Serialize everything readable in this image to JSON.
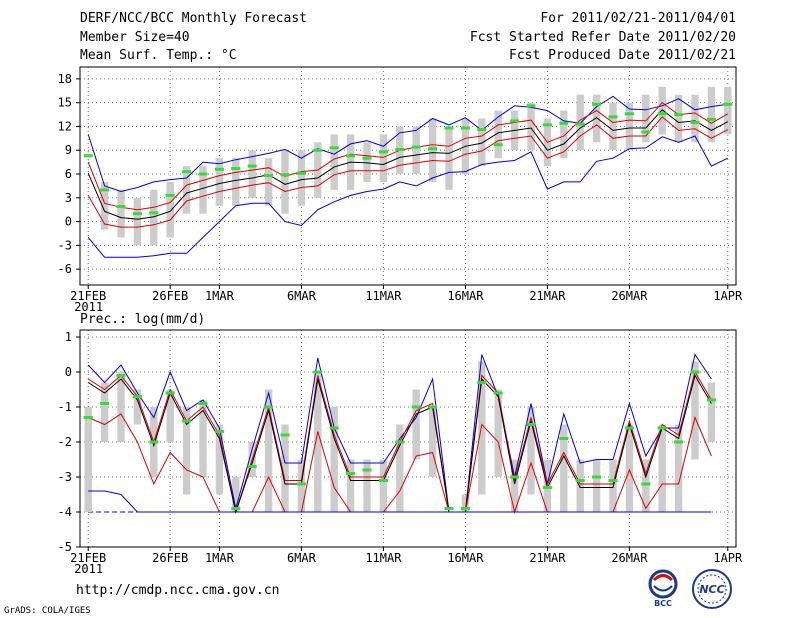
{
  "header": {
    "title": "DERF/NCC/BCC Monthly Forecast",
    "member_size": "Member Size=40",
    "variable": "Mean Surf. Temp.: °C",
    "period": "For 2011/02/21-2011/04/01",
    "start_date": "Fcst Started Refer Date 2011/02/20",
    "produced_date": "Fcst Produced Date 2011/02/21"
  },
  "footer": {
    "url": "http://cmdp.ncc.cma.gov.cn",
    "credit": "GrADS: COLA/IGES",
    "logo_left_text": "BCC",
    "logo_right_text": "NCC"
  },
  "colors": {
    "ensemble_mean": "#000000",
    "spread_lines": "#e00000",
    "min_max_lines": "#0000e0",
    "deterministic_marks": "#33dd33",
    "box_bars": "#cccccc"
  },
  "chart_data": [
    {
      "type": "line",
      "title": "Mean Surf. Temp.: °C",
      "x_tick_labels": [
        "21FEB",
        "26FEB",
        "1MAR",
        "6MAR",
        "11MAR",
        "16MAR",
        "21MAR",
        "26MAR",
        "1APR"
      ],
      "x_tick_days": [
        0,
        5,
        8,
        13,
        18,
        23,
        28,
        33,
        39
      ],
      "x_year_label": "2011",
      "xlim": [
        -0.5,
        39.5
      ],
      "ylim": [
        -8,
        19.5
      ],
      "yticks": [
        -6,
        -3,
        0,
        3,
        6,
        9,
        12,
        15,
        18
      ],
      "series": [
        {
          "name": "max",
          "values": [
            11,
            4.5,
            3.8,
            4.3,
            5,
            5.3,
            5.5,
            7.5,
            7.3,
            7.8,
            8.2,
            8.6,
            9.1,
            8,
            9.2,
            8.5,
            9.8,
            10.2,
            9.5,
            11.2,
            11.5,
            13,
            12.2,
            13.1,
            11.5,
            13.2,
            14.6,
            14.4,
            14,
            12.7,
            12.4,
            14.5,
            15.8,
            14.2,
            14.1,
            14.6,
            15.5,
            14.1,
            14.5,
            14.8
          ]
        },
        {
          "name": "upper",
          "values": [
            7.5,
            2.3,
            1.8,
            1.5,
            1.8,
            2.4,
            4.6,
            5.2,
            5.8,
            6.2,
            6.5,
            6.8,
            5.7,
            6.3,
            6.5,
            7.9,
            8.5,
            8.3,
            8.1,
            9,
            9.4,
            9.7,
            9.5,
            10.5,
            10.8,
            12.2,
            12.5,
            12.8,
            10,
            10.8,
            12.8,
            14,
            12.5,
            12.8,
            12.7,
            15,
            13.5,
            13.7,
            12.4,
            13.6
          ]
        },
        {
          "name": "mean",
          "values": [
            6.1,
            1.3,
            0.5,
            0.3,
            0.6,
            1.3,
            3.6,
            4.2,
            4.8,
            5.2,
            5.5,
            5.9,
            4.7,
            5.3,
            5.5,
            6.9,
            7.5,
            7.4,
            7.2,
            8.1,
            8.4,
            8.7,
            8.6,
            9.5,
            9.9,
            11.2,
            11.5,
            11.8,
            9,
            9.8,
            11.8,
            13.1,
            11.5,
            11.8,
            11.8,
            14.1,
            12.5,
            12.7,
            11.5,
            12.6
          ]
        },
        {
          "name": "lower",
          "values": [
            3.3,
            -0.3,
            -0.7,
            -0.7,
            -0.4,
            0.2,
            2.6,
            3.2,
            3.8,
            4.2,
            4.6,
            4.9,
            3.8,
            4.3,
            4.5,
            5.9,
            6.4,
            6.4,
            6.4,
            7.1,
            7.4,
            7.7,
            7.6,
            8.5,
            8.9,
            10.2,
            10.5,
            10.8,
            8,
            8.8,
            10.8,
            12.2,
            10.5,
            10.8,
            10.8,
            13.2,
            11.5,
            11.7,
            10.5,
            11.6
          ]
        },
        {
          "name": "min",
          "values": [
            -2,
            -4.5,
            -4.5,
            -4.5,
            -4.3,
            -4,
            -4,
            -2,
            0,
            2,
            2.3,
            2.3,
            0,
            -0.5,
            1.5,
            2.5,
            3.3,
            3.8,
            4.1,
            5,
            4.5,
            5.5,
            6.2,
            6.3,
            7.2,
            7.5,
            7.7,
            8.8,
            4.1,
            5,
            5,
            7.6,
            8,
            9.2,
            9.3,
            10.7,
            10,
            10.8,
            7,
            8
          ]
        }
      ],
      "boxes": [
        {
          "day": 1,
          "low": -1,
          "high": 5
        },
        {
          "day": 2,
          "low": -2,
          "high": 4
        },
        {
          "day": 3,
          "low": -3,
          "high": 3
        },
        {
          "day": 4,
          "low": -3,
          "high": 4
        },
        {
          "day": 5,
          "low": -2,
          "high": 5
        },
        {
          "day": 6,
          "low": 1,
          "high": 7
        },
        {
          "day": 7,
          "low": 1,
          "high": 7
        },
        {
          "day": 8,
          "low": 2,
          "high": 8
        },
        {
          "day": 9,
          "low": 2,
          "high": 8
        },
        {
          "day": 10,
          "low": 3,
          "high": 9
        },
        {
          "day": 11,
          "low": 2,
          "high": 8
        },
        {
          "day": 12,
          "low": 1,
          "high": 9
        },
        {
          "day": 13,
          "low": 2,
          "high": 9
        },
        {
          "day": 14,
          "low": 3,
          "high": 10
        },
        {
          "day": 15,
          "low": 4,
          "high": 11
        },
        {
          "day": 16,
          "low": 4,
          "high": 11
        },
        {
          "day": 17,
          "low": 5,
          "high": 10
        },
        {
          "day": 18,
          "low": 5,
          "high": 11
        },
        {
          "day": 19,
          "low": 6,
          "high": 12
        },
        {
          "day": 20,
          "low": 6,
          "high": 12
        },
        {
          "day": 21,
          "low": 5,
          "high": 13
        },
        {
          "day": 22,
          "low": 4,
          "high": 12
        },
        {
          "day": 23,
          "low": 6,
          "high": 13
        },
        {
          "day": 24,
          "low": 7,
          "high": 13
        },
        {
          "day": 25,
          "low": 8,
          "high": 14
        },
        {
          "day": 26,
          "low": 9,
          "high": 14
        },
        {
          "day": 27,
          "low": 9,
          "high": 15
        },
        {
          "day": 28,
          "low": 7,
          "high": 13
        },
        {
          "day": 29,
          "low": 8,
          "high": 14
        },
        {
          "day": 30,
          "low": 9,
          "high": 16
        },
        {
          "day": 31,
          "low": 10,
          "high": 16
        },
        {
          "day": 32,
          "low": 9,
          "high": 15
        },
        {
          "day": 33,
          "low": 9,
          "high": 15
        },
        {
          "day": 34,
          "low": 10,
          "high": 16
        },
        {
          "day": 35,
          "low": 11,
          "high": 17
        },
        {
          "day": 36,
          "low": 10,
          "high": 16
        },
        {
          "day": 37,
          "low": 10,
          "high": 16
        },
        {
          "day": 38,
          "low": 10,
          "high": 17
        },
        {
          "day": 39,
          "low": 11,
          "high": 17
        }
      ],
      "marks": [
        8.3,
        4,
        1.9,
        1,
        1.1,
        3.3,
        6.3,
        6,
        6.6,
        6.7,
        7,
        5.8,
        5.9,
        6.1,
        9,
        9.3,
        8.3,
        8,
        8.8,
        9.1,
        9.4,
        9.2,
        11.8,
        11.8,
        11.6,
        9.7,
        12.7,
        14.6,
        12.2,
        12.4,
        12.3,
        14.8,
        13.2,
        13.6,
        11.3,
        13.6,
        13.5,
        12.5,
        12.9,
        14.8
      ]
    },
    {
      "type": "line",
      "title": "Prec.: log(mm/d)",
      "x_tick_labels": [
        "21FEB",
        "26FEB",
        "1MAR",
        "6MAR",
        "11MAR",
        "16MAR",
        "21MAR",
        "26MAR",
        "1APR"
      ],
      "x_tick_days": [
        0,
        5,
        8,
        13,
        18,
        23,
        28,
        33,
        39
      ],
      "x_year_label": "2011",
      "xlim": [
        -0.5,
        39.5
      ],
      "ylim": [
        -5,
        1.2
      ],
      "yticks": [
        -5,
        -4,
        -3,
        -2,
        -1,
        0,
        1
      ],
      "reference_line": -4,
      "series": [
        {
          "name": "max",
          "values": [
            0.2,
            -0.3,
            0.2,
            -0.6,
            -1.3,
            0,
            -1.1,
            -0.8,
            -1.6,
            -3.9,
            -2.2,
            -0.6,
            -2.6,
            -2.6,
            0.4,
            -1.6,
            -2.6,
            -2.6,
            -2.6,
            -1.9,
            -1.3,
            -0.2,
            -4,
            -4,
            0.5,
            -0.7,
            -3,
            -0.9,
            -3.2,
            -1.2,
            -2.6,
            -2.5,
            -2.5,
            -0.9,
            -2.4,
            -1.6,
            -1.6,
            0.5,
            -0.2
          ]
        },
        {
          "name": "upper",
          "values": [
            -0.2,
            -0.5,
            -0.1,
            -0.7,
            -2,
            -0.5,
            -1.4,
            -1,
            -1.8,
            -4,
            -2.5,
            -1,
            -3.1,
            -3.1,
            -0.1,
            -1.8,
            -3,
            -3,
            -3,
            -2,
            -1.1,
            -0.9,
            -4,
            -4,
            -0.1,
            -0.6,
            -3.1,
            -1.3,
            -3.2,
            -2.3,
            -3.2,
            -3.2,
            -3.2,
            -1.4,
            -2.9,
            -1.5,
            -1.8,
            0,
            -0.8
          ]
        },
        {
          "name": "mean",
          "values": [
            -0.3,
            -0.6,
            -0.2,
            -0.8,
            -2.1,
            -0.6,
            -1.5,
            -1.1,
            -1.9,
            -4,
            -2.6,
            -1.1,
            -3.2,
            -3.2,
            -0.2,
            -1.9,
            -3.1,
            -3.1,
            -3.1,
            -2.1,
            -1.2,
            -1,
            -4,
            -4,
            -0.2,
            -0.7,
            -3.2,
            -1.4,
            -3.3,
            -2.4,
            -3.3,
            -3.3,
            -3.3,
            -1.5,
            -3,
            -1.6,
            -1.9,
            -0.1,
            -0.9
          ]
        },
        {
          "name": "lower",
          "values": [
            -1.3,
            -1.5,
            -1.2,
            -2,
            -3.2,
            -2.3,
            -2.8,
            -3,
            -4,
            -4,
            -4,
            -3,
            -4,
            -4,
            -1.7,
            -3.3,
            -4,
            -4,
            -4,
            -3.4,
            -2.4,
            -2.3,
            -4,
            -4,
            -1.5,
            -2,
            -4,
            -2.6,
            -4,
            -4,
            -4,
            -4,
            -4,
            -2.8,
            -3.9,
            -3.2,
            -3.2,
            -1.3,
            -2.4
          ]
        },
        {
          "name": "min",
          "values": [
            -3.4,
            -3.4,
            -3.5,
            -4,
            -4,
            -4,
            -4,
            -4,
            -4,
            -4,
            -4,
            -4,
            -4,
            -4,
            -4,
            -4,
            -4,
            -4,
            -4,
            -4,
            -4,
            -4,
            -4,
            -4,
            -4,
            -4,
            -4,
            -4,
            -4,
            -4,
            -4,
            -4,
            -4,
            -4,
            -4,
            -4,
            -4,
            -4,
            -4
          ]
        }
      ],
      "boxes": [
        {
          "day": 0,
          "low": -4,
          "high": -1
        },
        {
          "day": 1,
          "low": -2,
          "high": -0.3
        },
        {
          "day": 2,
          "low": -2,
          "high": 0
        },
        {
          "day": 3,
          "low": -1.5,
          "high": -0.5
        },
        {
          "day": 4,
          "low": -3,
          "high": -1
        },
        {
          "day": 5,
          "low": -2,
          "high": -0.5
        },
        {
          "day": 6,
          "low": -3.5,
          "high": -1
        },
        {
          "day": 7,
          "low": -3,
          "high": -0.8
        },
        {
          "day": 8,
          "low": -3.5,
          "high": -1.5
        },
        {
          "day": 9,
          "low": -4,
          "high": -3
        },
        {
          "day": 10,
          "low": -3,
          "high": -2
        },
        {
          "day": 11,
          "low": -4,
          "high": -0.5
        },
        {
          "day": 12,
          "low": -4,
          "high": -1.5
        },
        {
          "day": 13,
          "low": -4,
          "high": -2.5
        },
        {
          "day": 14,
          "low": -4,
          "high": 0
        },
        {
          "day": 15,
          "low": -4,
          "high": -1
        },
        {
          "day": 16,
          "low": -4,
          "high": -2.5
        },
        {
          "day": 17,
          "low": -4,
          "high": -2.5
        },
        {
          "day": 18,
          "low": -4,
          "high": -2.5
        },
        {
          "day": 19,
          "low": -4,
          "high": -1.5
        },
        {
          "day": 20,
          "low": -2.5,
          "high": -0.5
        },
        {
          "day": 21,
          "low": -3,
          "high": -1
        },
        {
          "day": 23,
          "low": -4,
          "high": -3.5
        },
        {
          "day": 24,
          "low": -3.5,
          "high": 0.3
        },
        {
          "day": 25,
          "low": -3,
          "high": -0.5
        },
        {
          "day": 26,
          "low": -4,
          "high": -2.5
        },
        {
          "day": 27,
          "low": -3.5,
          "high": -1
        },
        {
          "day": 28,
          "low": -4,
          "high": -2.5
        },
        {
          "day": 29,
          "low": -4,
          "high": -1.5
        },
        {
          "day": 30,
          "low": -4,
          "high": -2.5
        },
        {
          "day": 31,
          "low": -4,
          "high": -2.5
        },
        {
          "day": 32,
          "low": -4,
          "high": -2.5
        },
        {
          "day": 33,
          "low": -4,
          "high": -1.5
        },
        {
          "day": 34,
          "low": -4,
          "high": -2.5
        },
        {
          "day": 35,
          "low": -4,
          "high": -1.5
        },
        {
          "day": 36,
          "low": -4,
          "high": -1.5
        },
        {
          "day": 37,
          "low": -2.5,
          "high": 0.3
        },
        {
          "day": 38,
          "low": -2,
          "high": -0.3
        }
      ],
      "marks": [
        -1.3,
        -0.9,
        -0.1,
        -0.7,
        -2,
        -0.6,
        -1.4,
        -0.9,
        -1.7,
        -3.9,
        -2.7,
        -1,
        -1.8,
        -3.2,
        0,
        -1.6,
        -2.9,
        -2.8,
        -3.1,
        -2,
        -1,
        -1,
        -3.9,
        -3.9,
        -0.3,
        -0.6,
        -3,
        -1.5,
        -3.3,
        -1.9,
        -3.1,
        -3,
        -3.1,
        -1.6,
        -3.2,
        -1.6,
        -2,
        0,
        -0.8
      ]
    }
  ]
}
